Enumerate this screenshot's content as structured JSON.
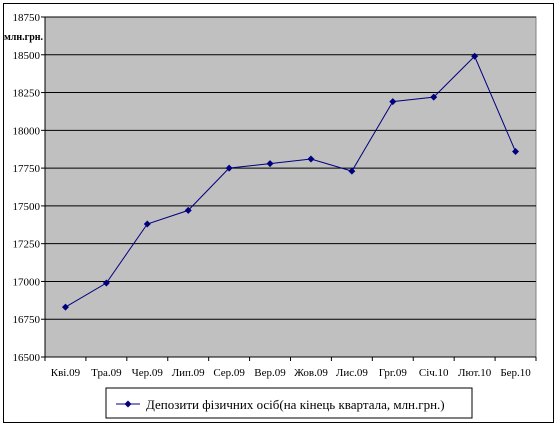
{
  "chart_data": {
    "type": "line",
    "ylabel": "млн.грн.",
    "ylim": [
      16500,
      18750
    ],
    "yticks": [
      16500,
      16750,
      17000,
      17250,
      17500,
      17750,
      18000,
      18250,
      18500,
      18750
    ],
    "categories": [
      "Кві.09",
      "Тра.09",
      "Чер.09",
      "Лип.09",
      "Сер.09",
      "Вер.09",
      "Жов.09",
      "Лис.09",
      "Грг.09",
      "Січ.10",
      "Лют.10",
      "Бер.10"
    ],
    "series": [
      {
        "name": "Депозити фізичних осіб(на кінець квартала, млн.грн.)",
        "values": [
          16830,
          16990,
          17380,
          17470,
          17750,
          17780,
          17810,
          17730,
          18190,
          18220,
          18490,
          17860
        ],
        "color": "#00007f"
      }
    ],
    "grid": true,
    "plot_background": "#c0c0c0",
    "legend_position": "bottom"
  }
}
